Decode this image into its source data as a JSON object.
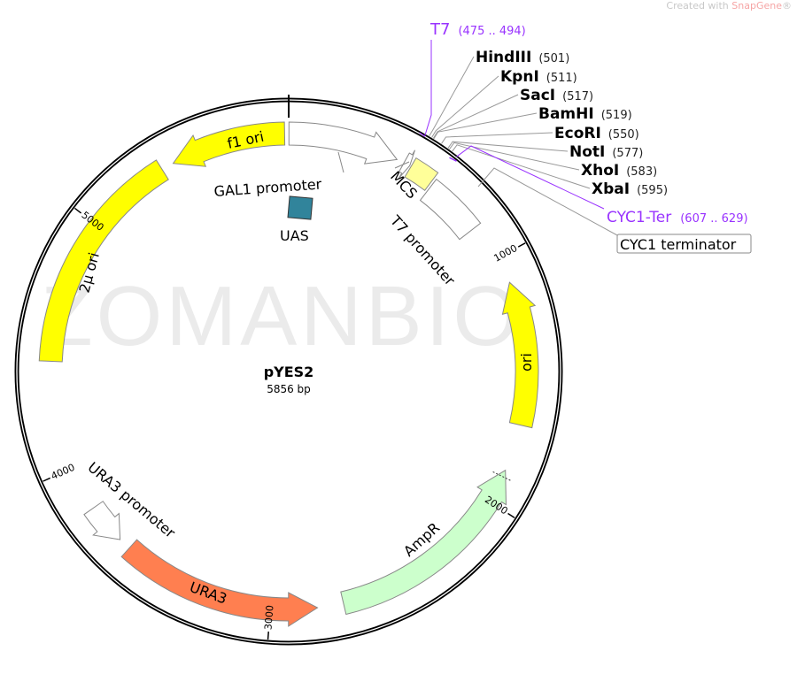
{
  "branding": {
    "prefix": "Created with ",
    "name": "SnapGene",
    "suffix": "®"
  },
  "watermark": "ZOMANBIO",
  "plasmid": {
    "name": "pYES2",
    "size_label": "5856 bp",
    "length_bp": 5856
  },
  "ticks": [
    {
      "bp": 1000,
      "label": "1000"
    },
    {
      "bp": 2000,
      "label": "2000"
    },
    {
      "bp": 3000,
      "label": "3000"
    },
    {
      "bp": 4000,
      "label": "4000"
    },
    {
      "bp": 5000,
      "label": "5000"
    }
  ],
  "features": [
    {
      "name": "f1 ori",
      "start": 5384,
      "end": 5840,
      "direction": "reverse",
      "color": "#ffff00"
    },
    {
      "name": "GAL1 promoter",
      "start": 1,
      "end": 440,
      "direction": "forward",
      "color": "#ffffff"
    },
    {
      "name": "2μ ori",
      "start": 4432,
      "end": 5335,
      "direction": "none",
      "color": "#ffff00"
    },
    {
      "name": "ori",
      "start": 1106,
      "end": 1676,
      "direction": "reverse",
      "color": "#ffff00"
    },
    {
      "name": "AmpR",
      "start": 1863,
      "end": 2712,
      "direction": "reverse",
      "color": "#ccffcc"
    },
    {
      "name": "URA3",
      "start": 2815,
      "end": 3612,
      "direction": "reverse",
      "color": "#ff7f50"
    },
    {
      "name": "URA3 promoter",
      "start": 3661,
      "end": 3823,
      "direction": "reverse",
      "color": "#ffffff"
    },
    {
      "name": "MCS",
      "start": 501,
      "end": 600,
      "direction": "none",
      "color": "#ffff99"
    },
    {
      "name": "T7 promoter",
      "start": 470,
      "end": 495,
      "direction": "forward",
      "color": "#ffffff"
    },
    {
      "name": "CYC1 terminator",
      "start": 610,
      "end": 850,
      "direction": "none",
      "color": "#ffffff"
    },
    {
      "name": "UAS",
      "start": 230,
      "end": 250,
      "direction": "none",
      "color": "#31849b"
    }
  ],
  "primers": [
    {
      "name": "T7",
      "range": "(475 .. 494)",
      "color": "#9933ff",
      "bp": 485
    },
    {
      "name": "CYC1-Ter",
      "range": "(607 .. 629)",
      "color": "#9933ff",
      "bp": 618
    }
  ],
  "sites": [
    {
      "name": "HindIII",
      "pos": "(501)",
      "bp": 501
    },
    {
      "name": "KpnI",
      "pos": "(511)",
      "bp": 511
    },
    {
      "name": "SacI",
      "pos": "(517)",
      "bp": 517
    },
    {
      "name": "BamHI",
      "pos": "(519)",
      "bp": 519
    },
    {
      "name": "EcoRI",
      "pos": "(550)",
      "bp": 550
    },
    {
      "name": "NotI",
      "pos": "(577)",
      "bp": 577
    },
    {
      "name": "XhoI",
      "pos": "(583)",
      "bp": 583
    },
    {
      "name": "XbaI",
      "pos": "(595)",
      "bp": 595
    }
  ]
}
